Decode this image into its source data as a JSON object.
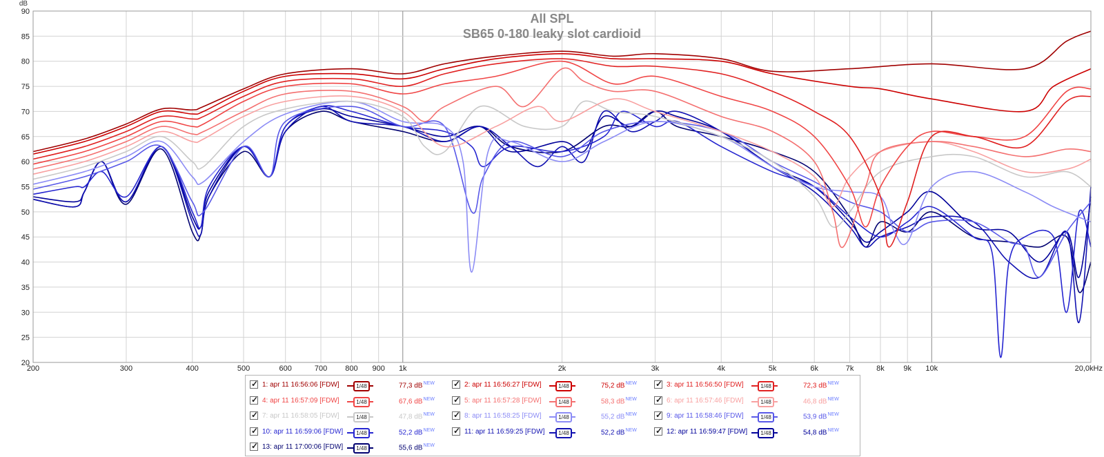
{
  "chart_data": {
    "type": "line",
    "title": "All SPL",
    "subtitle": "SB65 0-180 leaky slot cardioid",
    "ylabel": "dB",
    "xscale": "log",
    "xlim": [
      200,
      20000
    ],
    "ylim": [
      20,
      90
    ],
    "grid": true,
    "x_ticks": [
      {
        "v": 200,
        "label": "200"
      },
      {
        "v": 300,
        "label": "300"
      },
      {
        "v": 400,
        "label": "400"
      },
      {
        "v": 500,
        "label": "500"
      },
      {
        "v": 600,
        "label": "600"
      },
      {
        "v": 700,
        "label": "700"
      },
      {
        "v": 800,
        "label": "800"
      },
      {
        "v": 900,
        "label": "900"
      },
      {
        "v": 1000,
        "label": "1k"
      },
      {
        "v": 2000,
        "label": "2k"
      },
      {
        "v": 3000,
        "label": "3k"
      },
      {
        "v": 4000,
        "label": "4k"
      },
      {
        "v": 5000,
        "label": "5k"
      },
      {
        "v": 6000,
        "label": "6k"
      },
      {
        "v": 7000,
        "label": "7k"
      },
      {
        "v": 8000,
        "label": "8k"
      },
      {
        "v": 9000,
        "label": "9k"
      },
      {
        "v": 10000,
        "label": "10k"
      },
      {
        "v": 20000,
        "label": "20,0kHz"
      }
    ],
    "y_ticks": [
      {
        "v": 20,
        "label": "20"
      },
      {
        "v": 25,
        "label": "25"
      },
      {
        "v": 30,
        "label": "30"
      },
      {
        "v": 35,
        "label": "35"
      },
      {
        "v": 40,
        "label": "40"
      },
      {
        "v": 45,
        "label": "45"
      },
      {
        "v": 50,
        "label": "50"
      },
      {
        "v": 55,
        "label": "55"
      },
      {
        "v": 60,
        "label": "60"
      },
      {
        "v": 65,
        "label": "65"
      },
      {
        "v": 70,
        "label": "70"
      },
      {
        "v": 75,
        "label": "75"
      },
      {
        "v": 80,
        "label": "80"
      },
      {
        "v": 85,
        "label": "85"
      },
      {
        "v": 90,
        "label": "90"
      }
    ],
    "series": [
      {
        "name": "1: apr 11 16:56:06 [FDW]",
        "color": "#a00000",
        "value": "77,3 dB",
        "x": [
          200,
          250,
          300,
          350,
          400,
          420,
          500,
          600,
          800,
          1000,
          1200,
          1500,
          2000,
          2500,
          3000,
          4000,
          5000,
          7000,
          10000,
          15000,
          18000,
          20000
        ],
        "y": [
          62,
          64.5,
          67.5,
          70.5,
          70.3,
          71,
          74.5,
          77.5,
          78.5,
          77.5,
          79.5,
          81,
          82,
          81,
          81.5,
          80.5,
          78,
          78.5,
          79.5,
          78.5,
          84,
          86
        ]
      },
      {
        "name": "2: apr 11 16:56:27 [FDW]",
        "color": "#cc0000",
        "value": "75,2 dB",
        "x": [
          200,
          250,
          300,
          350,
          400,
          420,
          500,
          600,
          800,
          1000,
          1200,
          1500,
          2000,
          2500,
          3000,
          4000,
          5000,
          7000,
          8000,
          10000,
          15000,
          17000,
          20000
        ],
        "y": [
          61.5,
          64,
          67,
          70,
          69.5,
          70,
          74,
          77,
          77.5,
          76.5,
          78.5,
          80.5,
          81.5,
          80.5,
          80.5,
          80,
          77.5,
          75,
          74.5,
          72.5,
          70,
          75,
          78.5
        ]
      },
      {
        "name": "3: apr 11 16:56:50 [FDW]",
        "color": "#e02020",
        "value": "72,3 dB",
        "x": [
          200,
          250,
          300,
          350,
          400,
          420,
          500,
          600,
          800,
          1000,
          1200,
          1500,
          2000,
          2500,
          3000,
          4000,
          5000,
          6000,
          7000,
          8000,
          8300,
          9000,
          10000,
          12000,
          15000,
          18000,
          20000
        ],
        "y": [
          60.5,
          63,
          66,
          69,
          68.5,
          69,
          73,
          76,
          76.5,
          75,
          77.5,
          79.5,
          80.5,
          79,
          79,
          77.5,
          74,
          70,
          65,
          53,
          43,
          52,
          65,
          65,
          63,
          72,
          73
        ]
      },
      {
        "name": "4: apr 11 16:57:09 [FDW]",
        "color": "#f04545",
        "value": "67,6 dB",
        "x": [
          200,
          250,
          300,
          350,
          400,
          420,
          500,
          600,
          800,
          1000,
          1200,
          1500,
          2000,
          2500,
          3000,
          4000,
          5000,
          6000,
          7000,
          7500,
          8000,
          9000,
          10000,
          12000,
          15000,
          18000,
          20000
        ],
        "y": [
          59.5,
          62,
          65,
          68,
          67,
          67.5,
          72,
          75,
          75.5,
          73.5,
          75.5,
          77,
          80,
          75.5,
          77,
          73,
          70,
          65,
          55,
          47,
          55,
          63,
          66,
          65,
          65,
          74,
          74.5
        ]
      },
      {
        "name": "5: apr 11 16:57:28 [FDW]",
        "color": "#f47070",
        "value": "58,3 dB",
        "x": [
          200,
          250,
          300,
          350,
          400,
          420,
          500,
          600,
          800,
          1000,
          1100,
          1200,
          1500,
          1700,
          2000,
          2200,
          2500,
          3000,
          4000,
          5000,
          6000,
          6500,
          6800,
          7500,
          8000,
          10000,
          12000,
          15000,
          18000,
          20000
        ],
        "y": [
          58.5,
          61,
          64,
          67,
          65.5,
          66,
          70,
          73.5,
          74,
          71,
          68,
          71,
          75,
          71,
          78.5,
          76,
          74,
          74,
          69,
          66,
          60,
          50,
          43,
          55,
          62,
          64,
          63,
          61,
          62.5,
          62
        ]
      },
      {
        "name": "6: apr 11 16:57:46 [FDW]",
        "color": "#f8a0a0",
        "value": "46,8 dB",
        "x": [
          200,
          250,
          300,
          350,
          400,
          420,
          500,
          600,
          800,
          1000,
          1200,
          1500,
          1800,
          2000,
          2500,
          3000,
          4000,
          5000,
          6000,
          6500,
          7000,
          8000,
          10000,
          12000,
          15000,
          18000,
          20000
        ],
        "y": [
          57.5,
          60,
          63,
          66,
          64,
          64.5,
          69,
          72,
          73,
          70,
          63,
          67,
          71,
          68,
          72.5,
          70,
          66,
          62,
          57,
          51,
          57,
          62,
          64,
          62,
          58,
          58.5,
          60.5
        ]
      },
      {
        "name": "7: apr 11 16:58:05 [FDW]",
        "color": "#c8c8c8",
        "value": "47,8 dB",
        "x": [
          200,
          250,
          300,
          350,
          400,
          420,
          500,
          600,
          800,
          1000,
          1100,
          1200,
          1400,
          1700,
          2000,
          2200,
          2500,
          3000,
          4000,
          5000,
          6000,
          6500,
          7000,
          8000,
          10000,
          12000,
          15000,
          18000,
          20000
        ],
        "y": [
          56.5,
          59,
          62,
          65,
          60,
          59,
          67,
          70.5,
          72,
          69,
          63,
          62,
          71,
          67,
          67,
          72,
          70,
          69,
          65,
          60,
          53,
          47,
          50,
          58,
          61,
          61,
          57,
          58,
          55
        ]
      },
      {
        "name": "8: apr 11 16:58:25 [FDW]",
        "color": "#8c8cf5",
        "value": "55,2 dB",
        "x": [
          200,
          250,
          300,
          350,
          400,
          420,
          500,
          600,
          800,
          1000,
          1200,
          1300,
          1350,
          1450,
          1600,
          2000,
          2400,
          3000,
          4000,
          5000,
          6000,
          7000,
          8000,
          8500,
          9000,
          10000,
          12000,
          15000,
          17000,
          20000
        ],
        "y": [
          55.5,
          58,
          61,
          64,
          57,
          56,
          64,
          69.5,
          72,
          68,
          67,
          60,
          38,
          62,
          64,
          60,
          64,
          68,
          65,
          59,
          55,
          54,
          53,
          46,
          44,
          55,
          58,
          54,
          51,
          48
        ]
      },
      {
        "name": "9: apr 11 16:58:46 [FDW]",
        "color": "#5858e8",
        "value": "53,9 dB",
        "x": [
          200,
          250,
          300,
          350,
          400,
          420,
          500,
          560,
          600,
          800,
          1000,
          1200,
          1350,
          1420,
          1600,
          2000,
          2400,
          3000,
          4000,
          5000,
          6000,
          7000,
          8000,
          9000,
          10000,
          12000,
          14000,
          15000,
          16000,
          18000,
          20000
        ],
        "y": [
          54.5,
          57,
          60,
          63,
          52,
          50,
          63,
          57,
          68,
          71,
          67,
          67,
          50,
          57,
          64,
          61,
          66,
          68,
          66,
          60,
          56,
          52,
          50,
          46,
          48,
          48,
          44,
          43,
          37,
          46,
          52
        ]
      },
      {
        "name": "10: apr 11 16:59:06 [FDW]",
        "color": "#2525d0",
        "value": "52,2 dB",
        "x": [
          200,
          240,
          250,
          270,
          300,
          350,
          400,
          415,
          430,
          500,
          560,
          600,
          700,
          800,
          1000,
          1200,
          1350,
          1420,
          1600,
          2000,
          2400,
          2600,
          3000,
          3300,
          4000,
          5000,
          6000,
          7000,
          8000,
          9000,
          10000,
          12000,
          13000,
          13500,
          14000,
          15000,
          17000,
          18000,
          19000,
          20000
        ],
        "y": [
          53.5,
          55,
          55,
          58,
          53,
          63,
          50,
          47,
          55,
          63,
          57,
          67,
          71,
          70,
          67,
          66,
          63,
          59,
          63,
          62,
          65,
          70,
          67,
          68,
          63,
          58,
          55,
          49,
          45,
          48,
          51,
          45,
          42,
          21,
          40,
          45,
          45,
          30,
          50,
          43
        ]
      },
      {
        "name": "11: apr 11 16:59:25 [FDW]",
        "color": "#1010b0",
        "value": "52,2 dB",
        "x": [
          200,
          240,
          250,
          270,
          300,
          350,
          400,
          415,
          430,
          500,
          560,
          600,
          700,
          800,
          1000,
          1200,
          1400,
          1600,
          1800,
          2000,
          2200,
          2400,
          2700,
          3000,
          3300,
          4000,
          5000,
          6000,
          7000,
          7500,
          8000,
          9000,
          10000,
          12000,
          14000,
          16000,
          18000,
          19000,
          20000
        ],
        "y": [
          52.5,
          51,
          54,
          60,
          52,
          63,
          48,
          45.5,
          53,
          63,
          57,
          66,
          71,
          68,
          67,
          64,
          67,
          63,
          59,
          63,
          60,
          70,
          66,
          68,
          70,
          66,
          59,
          54,
          47,
          43,
          45,
          47,
          49,
          48,
          40,
          37,
          46,
          28,
          55
        ]
      },
      {
        "name": "12: apr 11 16:59:47 [FDW]",
        "color": "#000099",
        "value": "54,8 dB",
        "x": [
          200,
          240,
          250,
          270,
          300,
          350,
          400,
          415,
          430,
          500,
          560,
          600,
          700,
          800,
          1000,
          1200,
          1400,
          1600,
          2000,
          2200,
          2400,
          2700,
          3000,
          3300,
          4000,
          5000,
          6000,
          7000,
          7500,
          8000,
          9000,
          10000,
          12000,
          14000,
          16000,
          18000,
          19000,
          20000
        ],
        "y": [
          53,
          52,
          54,
          60,
          52,
          63,
          49,
          47,
          54,
          63,
          57,
          67,
          70.5,
          69,
          67,
          65,
          67,
          62,
          64,
          62,
          69,
          67,
          70,
          69,
          66,
          59,
          55,
          48,
          44,
          46,
          50,
          54,
          47,
          46,
          40,
          46,
          37,
          53
        ]
      },
      {
        "name": "13: apr 11 17:00:06 [FDW]",
        "color": "#000070",
        "value": "55,6 dB",
        "x": [
          200,
          240,
          250,
          270,
          300,
          350,
          400,
          415,
          430,
          500,
          560,
          600,
          700,
          800,
          1000,
          1200,
          1400,
          1600,
          2000,
          2400,
          2700,
          3000,
          3300,
          4000,
          5000,
          6000,
          7000,
          7500,
          8000,
          9000,
          10000,
          12000,
          14000,
          16000,
          18000,
          19000,
          20000
        ],
        "y": [
          52.5,
          51,
          54,
          60,
          51.5,
          62.5,
          46,
          45.5,
          53,
          62,
          57,
          66,
          70,
          68,
          66,
          64,
          67,
          63,
          62,
          67,
          67,
          70,
          67,
          65,
          62,
          58,
          49,
          43,
          48,
          46,
          50,
          45,
          44,
          43,
          45,
          34,
          40
        ]
      }
    ]
  },
  "legend": {
    "smooth_label": "1/48",
    "new_tag": "NEW"
  }
}
